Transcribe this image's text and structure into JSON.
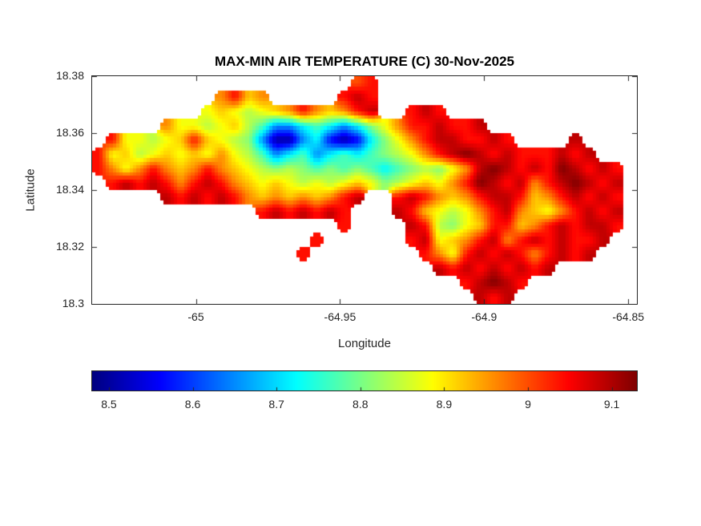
{
  "chart_data": {
    "type": "heatmap",
    "title": "MAX-MIN AIR TEMPERATURE (C) 30-Nov-2025",
    "units": "C",
    "xlabel": "Longitude",
    "ylabel": "Latitude",
    "xlim": [
      -65.036,
      -64.847
    ],
    "ylim": [
      18.3,
      18.38
    ],
    "x_ticks": [
      -65,
      -64.95,
      -64.9,
      -64.85
    ],
    "x_tick_labels": [
      "-65",
      "-64.95",
      "-64.9",
      "-64.85"
    ],
    "y_ticks": [
      18.38,
      18.36,
      18.34,
      18.32,
      18.3
    ],
    "y_tick_labels": [
      "18.38",
      "18.36",
      "18.34",
      "18.32",
      "18.3"
    ],
    "colorbar": {
      "orientation": "horizontal",
      "colormap": "jet",
      "clim": [
        8.48,
        9.13
      ],
      "ticks": [
        8.5,
        8.6,
        8.7,
        8.8,
        8.9,
        9,
        9.1
      ],
      "tick_labels": [
        "8.5",
        "8.6",
        "8.7",
        "8.8",
        "8.9",
        "9",
        "9.1"
      ]
    },
    "grid": {
      "comment": "coarse reconstruction of the island temperature field; null = sea (no data)",
      "ncols": 40,
      "nrows": 16,
      "lon_range": [
        -65.036,
        -64.847
      ],
      "lat_range": [
        18.38,
        18.3
      ],
      "values": [
        [
          null,
          null,
          null,
          null,
          null,
          null,
          null,
          null,
          null,
          null,
          null,
          null,
          null,
          null,
          null,
          null,
          null,
          null,
          null,
          9,
          9.04,
          null,
          null,
          null,
          null,
          null,
          null,
          null,
          null,
          null,
          null,
          null,
          null,
          null,
          null,
          null,
          null,
          null,
          null,
          null
        ],
        [
          null,
          null,
          null,
          null,
          null,
          null,
          null,
          null,
          null,
          8.96,
          9.04,
          8.92,
          8.96,
          null,
          null,
          null,
          null,
          null,
          9.04,
          9.09,
          9.04,
          null,
          null,
          null,
          null,
          null,
          null,
          null,
          null,
          null,
          null,
          null,
          null,
          null,
          null,
          null,
          null,
          null,
          null,
          null
        ],
        [
          null,
          null,
          null,
          null,
          null,
          null,
          null,
          null,
          8.88,
          8.92,
          8.88,
          8.84,
          8.88,
          8.92,
          8.96,
          9.04,
          8.96,
          8.92,
          8.96,
          9.04,
          9.09,
          null,
          null,
          9.04,
          9.09,
          9.04,
          null,
          null,
          null,
          null,
          null,
          null,
          null,
          null,
          null,
          null,
          null,
          null,
          null,
          null
        ],
        [
          null,
          null,
          null,
          null,
          null,
          8.96,
          8.88,
          8.88,
          8.84,
          8.88,
          8.92,
          8.84,
          8.77,
          8.65,
          8.65,
          8.72,
          8.77,
          8.72,
          8.65,
          8.72,
          8.81,
          8.88,
          8.96,
          9.04,
          9.04,
          9.09,
          9.04,
          9.04,
          9.09,
          null,
          null,
          null,
          null,
          null,
          null,
          null,
          null,
          null,
          null,
          null
        ],
        [
          null,
          9.04,
          8.88,
          8.88,
          8.84,
          8.88,
          8.92,
          9.04,
          8.92,
          8.88,
          8.84,
          8.81,
          8.65,
          8.5,
          8.5,
          8.65,
          8.72,
          8.56,
          8.5,
          8.56,
          8.72,
          8.81,
          8.88,
          8.96,
          9.04,
          9.09,
          9.09,
          9.04,
          9.04,
          9.09,
          9.04,
          null,
          null,
          null,
          null,
          9.09,
          null,
          null,
          null,
          null
        ],
        [
          9.04,
          8.88,
          8.92,
          8.84,
          8.88,
          8.92,
          8.88,
          8.92,
          8.88,
          8.96,
          8.88,
          8.84,
          8.77,
          8.65,
          8.72,
          8.77,
          8.65,
          8.72,
          8.77,
          8.72,
          8.77,
          8.81,
          8.84,
          8.88,
          8.96,
          9.04,
          9.09,
          9.13,
          9.09,
          9.04,
          9.09,
          9.04,
          9.04,
          9.04,
          9.09,
          9.04,
          9.09,
          null,
          null,
          null
        ],
        [
          9.04,
          8.96,
          8.88,
          8.96,
          9.04,
          8.96,
          8.92,
          8.96,
          9.04,
          8.96,
          8.92,
          8.88,
          8.84,
          8.81,
          8.84,
          8.81,
          8.77,
          8.81,
          8.77,
          8.81,
          8.77,
          8.72,
          8.77,
          8.81,
          8.84,
          8.81,
          8.88,
          8.96,
          9.09,
          9.13,
          9.09,
          9.04,
          9.09,
          9.04,
          9.13,
          9.09,
          9.04,
          9.09,
          9.04,
          null
        ],
        [
          null,
          9.04,
          9.09,
          9.04,
          9.09,
          9.04,
          8.96,
          9.04,
          9.09,
          9.04,
          8.96,
          8.92,
          8.88,
          8.92,
          8.88,
          8.84,
          8.88,
          8.84,
          8.88,
          8.92,
          8.88,
          8.81,
          8.84,
          8.88,
          8.92,
          8.88,
          8.96,
          9.04,
          9.13,
          9.09,
          9.04,
          9.09,
          8.96,
          9.04,
          9.09,
          9.13,
          9.09,
          9.04,
          9.09,
          null
        ],
        [
          null,
          null,
          null,
          null,
          null,
          9.09,
          9.04,
          9.09,
          9.04,
          9.09,
          9.04,
          8.96,
          8.92,
          8.96,
          8.92,
          8.96,
          8.92,
          8.96,
          9.04,
          9.09,
          null,
          null,
          9.04,
          9.09,
          9.04,
          8.96,
          8.92,
          8.96,
          9.04,
          9.09,
          9.09,
          9.04,
          8.92,
          8.96,
          9.04,
          9.09,
          9.04,
          9.09,
          9.04,
          null
        ],
        [
          null,
          null,
          null,
          null,
          null,
          null,
          null,
          null,
          null,
          null,
          null,
          null,
          9.04,
          9.09,
          9.04,
          9.09,
          9.04,
          9.09,
          9.04,
          null,
          null,
          null,
          9.09,
          9.04,
          8.92,
          8.88,
          8.84,
          8.88,
          8.96,
          9.04,
          9.09,
          8.96,
          8.92,
          8.88,
          8.96,
          9.04,
          9.09,
          9.04,
          9.09,
          null
        ],
        [
          null,
          null,
          null,
          null,
          null,
          null,
          null,
          null,
          null,
          null,
          null,
          null,
          null,
          null,
          null,
          null,
          null,
          null,
          9.04,
          null,
          null,
          null,
          null,
          9.09,
          9.04,
          8.84,
          8.81,
          8.88,
          8.92,
          9.04,
          9.04,
          8.92,
          8.96,
          9.04,
          9.09,
          9.04,
          9.09,
          9.09,
          9.04,
          null
        ],
        [
          null,
          null,
          null,
          null,
          null,
          null,
          null,
          null,
          null,
          null,
          null,
          null,
          null,
          null,
          null,
          null,
          9.04,
          null,
          null,
          null,
          null,
          null,
          null,
          9.04,
          9.09,
          8.88,
          8.92,
          8.96,
          9.04,
          9.09,
          8.96,
          9.04,
          9.09,
          9.04,
          9.09,
          9.04,
          9.04,
          9.09,
          null,
          null
        ],
        [
          null,
          null,
          null,
          null,
          null,
          null,
          null,
          null,
          null,
          null,
          null,
          null,
          null,
          null,
          null,
          9.04,
          null,
          null,
          null,
          null,
          null,
          null,
          null,
          null,
          9.04,
          8.96,
          8.88,
          9.04,
          9.09,
          9.04,
          9.09,
          9.04,
          8.96,
          9.04,
          9.09,
          9.04,
          9.09,
          null,
          null,
          null
        ],
        [
          null,
          null,
          null,
          null,
          null,
          null,
          null,
          null,
          null,
          null,
          null,
          null,
          null,
          null,
          null,
          null,
          null,
          null,
          null,
          null,
          null,
          null,
          null,
          null,
          null,
          9.09,
          9.04,
          9.09,
          9.04,
          9.09,
          9.04,
          9.09,
          9.04,
          9.09,
          null,
          null,
          null,
          null,
          null,
          null
        ],
        [
          null,
          null,
          null,
          null,
          null,
          null,
          null,
          null,
          null,
          null,
          null,
          null,
          null,
          null,
          null,
          null,
          null,
          null,
          null,
          null,
          null,
          null,
          null,
          null,
          null,
          null,
          null,
          9.04,
          9.09,
          9.13,
          9.09,
          9.04,
          null,
          null,
          null,
          null,
          null,
          null,
          null,
          null
        ],
        [
          null,
          null,
          null,
          null,
          null,
          null,
          null,
          null,
          null,
          null,
          null,
          null,
          null,
          null,
          null,
          null,
          null,
          null,
          null,
          null,
          null,
          null,
          null,
          null,
          null,
          null,
          null,
          null,
          9.09,
          9.04,
          9.09,
          null,
          null,
          null,
          null,
          null,
          null,
          null,
          null,
          null
        ]
      ]
    }
  }
}
